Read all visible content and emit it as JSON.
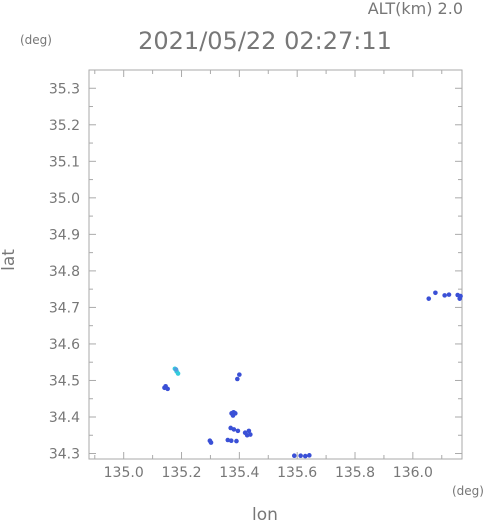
{
  "chart_data": {
    "type": "scatter",
    "altitude_label": "ALT(km) 2.0",
    "timestamp": "2021/05/22 02:27:11",
    "xlabel": "lon",
    "ylabel": "lat",
    "x_unit": "(deg)",
    "y_unit": "(deg)",
    "xlim": [
      134.88,
      136.17
    ],
    "ylim": [
      34.285,
      35.35
    ],
    "x_ticks": [
      {
        "value": 135.0,
        "label": "135.0"
      },
      {
        "value": 135.2,
        "label": "135.2"
      },
      {
        "value": 135.4,
        "label": "135.4"
      },
      {
        "value": 135.6,
        "label": "135.6"
      },
      {
        "value": 135.8,
        "label": "135.8"
      },
      {
        "value": 136.0,
        "label": "136.0"
      }
    ],
    "y_ticks": [
      {
        "value": 34.3,
        "label": "34.3"
      },
      {
        "value": 34.4,
        "label": "34.4"
      },
      {
        "value": 34.5,
        "label": "34.5"
      },
      {
        "value": 34.6,
        "label": "34.6"
      },
      {
        "value": 34.7,
        "label": "34.7"
      },
      {
        "value": 34.8,
        "label": "34.8"
      },
      {
        "value": 34.9,
        "label": "34.9"
      },
      {
        "value": 35.0,
        "label": "35.0"
      },
      {
        "value": 35.1,
        "label": "35.1"
      },
      {
        "value": 35.2,
        "label": "35.2"
      },
      {
        "value": 35.3,
        "label": "35.3"
      }
    ],
    "grid": false,
    "colors": {
      "axis": "#aaaaaa",
      "text": "#777777",
      "echo": "#3a50d6",
      "echo_light": "#33ccdd"
    },
    "points": [
      {
        "x": 135.177,
        "y": 34.532,
        "c": "#33ccdd"
      },
      {
        "x": 135.183,
        "y": 34.525,
        "c": "#33ccdd"
      },
      {
        "x": 135.188,
        "y": 34.519,
        "c": "#33ccdd"
      },
      {
        "x": 135.181,
        "y": 34.53,
        "c": "#4fa0e0"
      },
      {
        "x": 135.145,
        "y": 34.484,
        "c": "#3a50d6"
      },
      {
        "x": 135.152,
        "y": 34.477,
        "c": "#3a50d6"
      },
      {
        "x": 135.141,
        "y": 34.48,
        "c": "#3a50d6"
      },
      {
        "x": 135.393,
        "y": 34.504,
        "c": "#3a50d6"
      },
      {
        "x": 135.4,
        "y": 34.516,
        "c": "#3a50d6"
      },
      {
        "x": 135.373,
        "y": 34.41,
        "c": "#3a50d6"
      },
      {
        "x": 135.38,
        "y": 34.413,
        "c": "#3a50d6"
      },
      {
        "x": 135.386,
        "y": 34.41,
        "c": "#3a50d6"
      },
      {
        "x": 135.378,
        "y": 34.404,
        "c": "#3a50d6"
      },
      {
        "x": 135.37,
        "y": 34.37,
        "c": "#3a50d6"
      },
      {
        "x": 135.381,
        "y": 34.366,
        "c": "#3a50d6"
      },
      {
        "x": 135.395,
        "y": 34.362,
        "c": "#3a50d6"
      },
      {
        "x": 135.42,
        "y": 34.357,
        "c": "#3a50d6"
      },
      {
        "x": 135.427,
        "y": 34.35,
        "c": "#3a50d6"
      },
      {
        "x": 135.433,
        "y": 34.362,
        "c": "#3a50d6"
      },
      {
        "x": 135.438,
        "y": 34.352,
        "c": "#3a50d6"
      },
      {
        "x": 135.298,
        "y": 34.335,
        "c": "#3a50d6"
      },
      {
        "x": 135.302,
        "y": 34.33,
        "c": "#3a50d6"
      },
      {
        "x": 135.36,
        "y": 34.337,
        "c": "#3a50d6"
      },
      {
        "x": 135.372,
        "y": 34.335,
        "c": "#3a50d6"
      },
      {
        "x": 135.39,
        "y": 34.334,
        "c": "#3a50d6"
      },
      {
        "x": 135.59,
        "y": 34.294,
        "c": "#3a50d6"
      },
      {
        "x": 135.612,
        "y": 34.294,
        "c": "#3a50d6"
      },
      {
        "x": 135.628,
        "y": 34.293,
        "c": "#3a50d6"
      },
      {
        "x": 135.642,
        "y": 34.295,
        "c": "#3a50d6"
      },
      {
        "x": 136.055,
        "y": 34.724,
        "c": "#3a50d6"
      },
      {
        "x": 136.078,
        "y": 34.74,
        "c": "#3a50d6"
      },
      {
        "x": 136.11,
        "y": 34.733,
        "c": "#3a50d6"
      },
      {
        "x": 136.125,
        "y": 34.735,
        "c": "#3a50d6"
      },
      {
        "x": 136.155,
        "y": 34.734,
        "c": "#3a50d6"
      },
      {
        "x": 136.162,
        "y": 34.724,
        "c": "#3a50d6"
      },
      {
        "x": 136.165,
        "y": 34.731,
        "c": "#3a50d6"
      }
    ]
  }
}
